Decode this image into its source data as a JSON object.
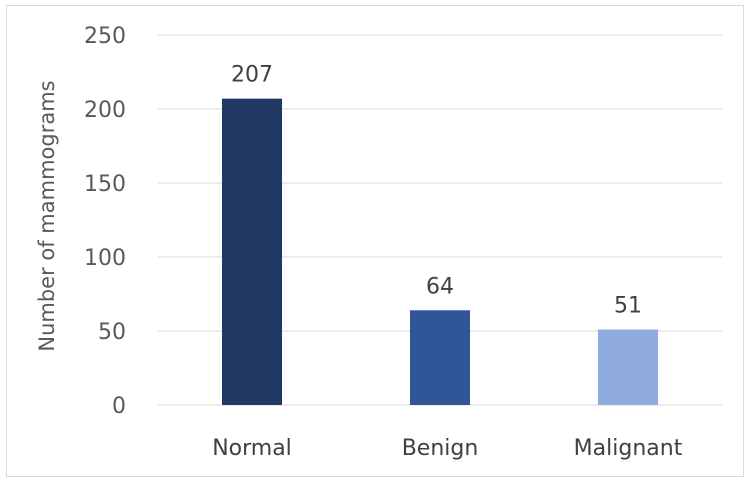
{
  "chart_data": {
    "type": "bar",
    "title": "",
    "xlabel": "",
    "ylabel": "Number of mammograms",
    "categories": [
      "Normal",
      "Benign",
      "Malignant"
    ],
    "values": [
      207,
      64,
      51
    ],
    "data_labels": [
      "207",
      "64",
      "51"
    ],
    "yticks": [
      "0",
      "50",
      "100",
      "150",
      "200",
      "250"
    ],
    "ylim": [
      0,
      250
    ],
    "bar_colors": [
      "#1f3864",
      "#2f5597",
      "#8faadc"
    ],
    "grid": true,
    "legend": "none"
  }
}
